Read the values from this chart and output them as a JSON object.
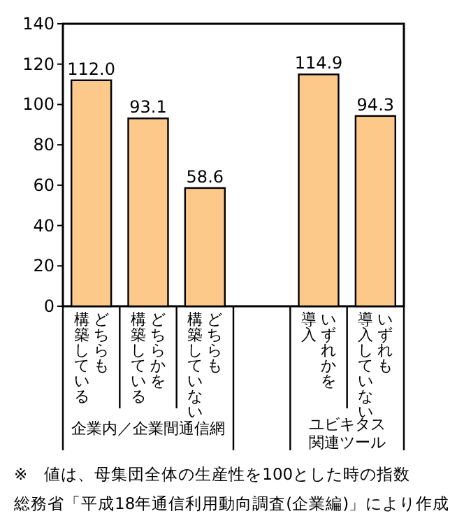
{
  "chart_data": {
    "type": "bar",
    "categories": [
      "どちらも構築している",
      "どちらかを構築している",
      "どちらも構築していない",
      "いずれかを導入",
      "いずれも導入していない"
    ],
    "values": [
      112.0,
      93.1,
      58.6,
      114.9,
      94.3
    ],
    "value_labels": [
      "112.0",
      "93.1",
      "58.6",
      "114.9",
      "94.3"
    ],
    "color": "#fcc98a",
    "ylim": [
      0,
      140
    ],
    "yticks": [
      0,
      20,
      40,
      60,
      80,
      100,
      120,
      140
    ],
    "grid": false,
    "annotations": [
      "企業内／企業間通信網",
      "ユビキタス関連ツール",
      "※　値は、母集団全体の生産性を100とした時の指数",
      "総務省「平成18年通信利用動向調査(企業編)」により作成"
    ]
  }
}
